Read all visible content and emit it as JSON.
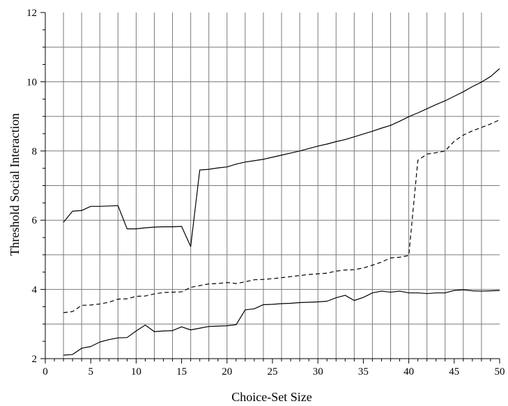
{
  "chart_data": {
    "type": "line",
    "title": "",
    "xlabel": "Choice-Set Size",
    "ylabel": "Threshold Social Interaction",
    "xlim": [
      0,
      50
    ],
    "ylim": [
      2,
      12
    ],
    "xticks": [
      0,
      5,
      10,
      15,
      20,
      25,
      30,
      35,
      40,
      45,
      50
    ],
    "yticks": [
      2,
      4,
      6,
      8,
      10,
      12
    ],
    "grid": true,
    "legend": "none",
    "x": [
      2,
      3,
      4,
      5,
      6,
      7,
      8,
      9,
      10,
      11,
      12,
      13,
      14,
      15,
      16,
      17,
      18,
      19,
      20,
      21,
      22,
      23,
      24,
      25,
      26,
      27,
      28,
      29,
      30,
      31,
      32,
      33,
      34,
      35,
      36,
      37,
      38,
      39,
      40,
      41,
      42,
      43,
      44,
      45,
      46,
      47,
      48,
      49,
      50
    ],
    "series": [
      {
        "style": "solid",
        "color": "#000000",
        "values": [
          5.94,
          6.26,
          6.28,
          6.4,
          6.4,
          6.41,
          6.42,
          5.75,
          5.75,
          5.78,
          5.8,
          5.81,
          5.81,
          5.82,
          5.24,
          7.45,
          7.47,
          7.51,
          7.54,
          7.62,
          7.68,
          7.72,
          7.76,
          7.82,
          7.88,
          7.94,
          8.0,
          8.07,
          8.14,
          8.2,
          8.27,
          8.33,
          8.41,
          8.49,
          8.57,
          8.66,
          8.74,
          8.86,
          8.99,
          9.1,
          9.22,
          9.34,
          9.45,
          9.58,
          9.71,
          9.86,
          9.99,
          10.15,
          10.38
        ]
      },
      {
        "style": "dashed",
        "color": "#000000",
        "values": [
          3.33,
          3.36,
          3.54,
          3.55,
          3.58,
          3.63,
          3.72,
          3.73,
          3.8,
          3.81,
          3.87,
          3.91,
          3.92,
          3.93,
          4.06,
          4.11,
          4.16,
          4.17,
          4.2,
          4.17,
          4.22,
          4.28,
          4.29,
          4.31,
          4.34,
          4.37,
          4.4,
          4.43,
          4.45,
          4.47,
          4.53,
          4.56,
          4.57,
          4.62,
          4.7,
          4.79,
          4.91,
          4.93,
          4.98,
          7.73,
          7.91,
          7.95,
          8.0,
          8.28,
          8.46,
          8.58,
          8.68,
          8.78,
          8.9
        ]
      },
      {
        "style": "solid",
        "color": "#000000",
        "values": [
          2.1,
          2.12,
          2.3,
          2.35,
          2.48,
          2.55,
          2.6,
          2.61,
          2.8,
          2.97,
          2.78,
          2.8,
          2.81,
          2.92,
          2.83,
          2.88,
          2.93,
          2.94,
          2.95,
          2.98,
          3.41,
          3.44,
          3.56,
          3.57,
          3.59,
          3.6,
          3.62,
          3.63,
          3.64,
          3.66,
          3.76,
          3.83,
          3.68,
          3.77,
          3.9,
          3.95,
          3.92,
          3.95,
          3.9,
          3.9,
          3.88,
          3.9,
          3.9,
          3.97,
          3.99,
          3.96,
          3.95,
          3.96,
          3.97
        ]
      }
    ]
  }
}
